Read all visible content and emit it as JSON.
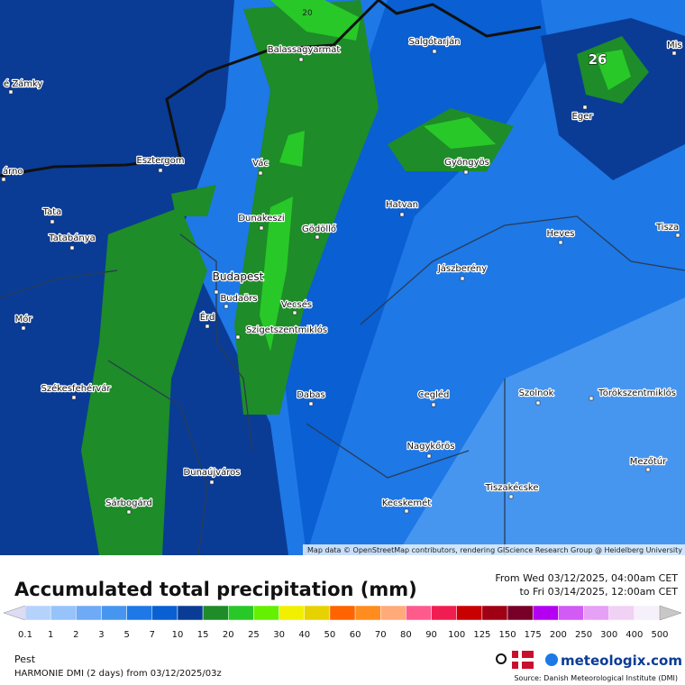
{
  "map": {
    "contour_label": "20",
    "max_label": "26",
    "attribution": "Map data © OpenStreetMap contributors, rendering GIScience Research Group @ Heidelberg University",
    "cities": [
      "Balassagyarmat",
      "Salgótarján",
      "é Zámky",
      "Esztergom",
      "árno",
      "Vác",
      "Gyöngyös",
      "Eger",
      "Mis",
      "Tata",
      "Tatabánya",
      "Dunakeszi",
      "Gödöllő",
      "Hatvan",
      "Heves",
      "Tisza",
      "Jászberény",
      "Budapest",
      "Budaörs",
      "Mór",
      "Érd",
      "Vecsés",
      "Szigetszentmiklós",
      "Székesfehérvár",
      "Dabas",
      "Cegléd",
      "Szolnok",
      "Törökszentmiklós",
      "Nagykőrös",
      "Dunaújváros",
      "Mezőtúr",
      "Tiszakécske",
      "Sárbogárd",
      "Kecskemét"
    ]
  },
  "legend": {
    "title": "Accumulated total precipitation (mm)",
    "period_from": "From Wed 03/12/2025, 04:00am CET",
    "period_to": "to Fri 03/14/2025, 12:00am CET",
    "ticks": [
      "0.1",
      "1",
      "2",
      "3",
      "5",
      "7",
      "10",
      "15",
      "20",
      "25",
      "30",
      "40",
      "50",
      "60",
      "70",
      "80",
      "90",
      "100",
      "125",
      "150",
      "175",
      "200",
      "250",
      "300",
      "400",
      "500"
    ],
    "colors": [
      "#dcdcf5",
      "#b4d2fa",
      "#96c3fa",
      "#6eaaf5",
      "#4696f0",
      "#1e78e6",
      "#0a5fd2",
      "#0a3c96",
      "#1e8c28",
      "#28c828",
      "#64f000",
      "#f0f000",
      "#e6d200",
      "#ff6400",
      "#ff8c1e",
      "#ffaa78",
      "#ff5a8c",
      "#f01e50",
      "#c80000",
      "#a00014",
      "#780028",
      "#b400f0",
      "#d25af5",
      "#e6a0f5",
      "#f0d2f5",
      "#f5f0fa",
      "#c8c8c8"
    ]
  },
  "footer": {
    "region": "Pest",
    "model": "HARMONIE DMI (2 days)  from  03/12/2025/03z",
    "brand": "meteologix.com",
    "source": "Source: Danish Meteorological Institute (DMI)"
  }
}
